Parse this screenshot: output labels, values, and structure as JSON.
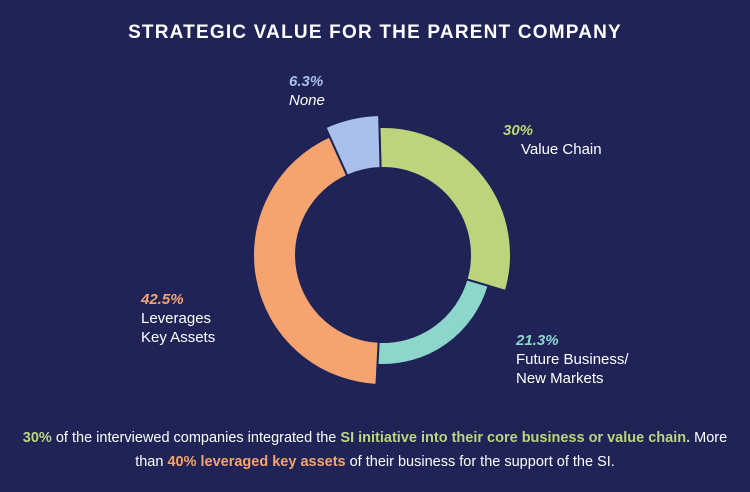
{
  "title": "STRATEGIC VALUE FOR THE PARENT COMPANY",
  "chart_data": {
    "type": "pie",
    "variant": "donut",
    "title": "STRATEGIC VALUE FOR THE PARENT COMPANY",
    "slices": [
      {
        "label": "Value Chain",
        "pct_label": "30%",
        "value": 30,
        "color": "#bcd57d"
      },
      {
        "label": "Future Business/ New Markets",
        "line1": "Future Business/",
        "line2": "New Markets",
        "pct_label": "21.3%",
        "value": 21.3,
        "color": "#8dd6cc"
      },
      {
        "label": "Leverages Key Assets",
        "line1": "Leverages",
        "line2": "Key Assets",
        "pct_label": "42.5%",
        "value": 42.5,
        "color": "#f5a470"
      },
      {
        "label": "None",
        "pct_label": "6.3%",
        "value": 6.3,
        "color": "#a9c1ea"
      }
    ]
  },
  "caption": {
    "p1": "30%",
    "p2": " of the interviewed companies integrated the ",
    "p3": "SI initiative into their core business or value chain.",
    "p4": " More than ",
    "p5": "40% leveraged key assets",
    "p6": " of their business for the support of the SI."
  },
  "colors": {
    "background": "#1f2356",
    "value_chain": "#bcd57d",
    "future_business": "#8dd6cc",
    "key_assets": "#f5a470",
    "none": "#a9c1ea"
  }
}
